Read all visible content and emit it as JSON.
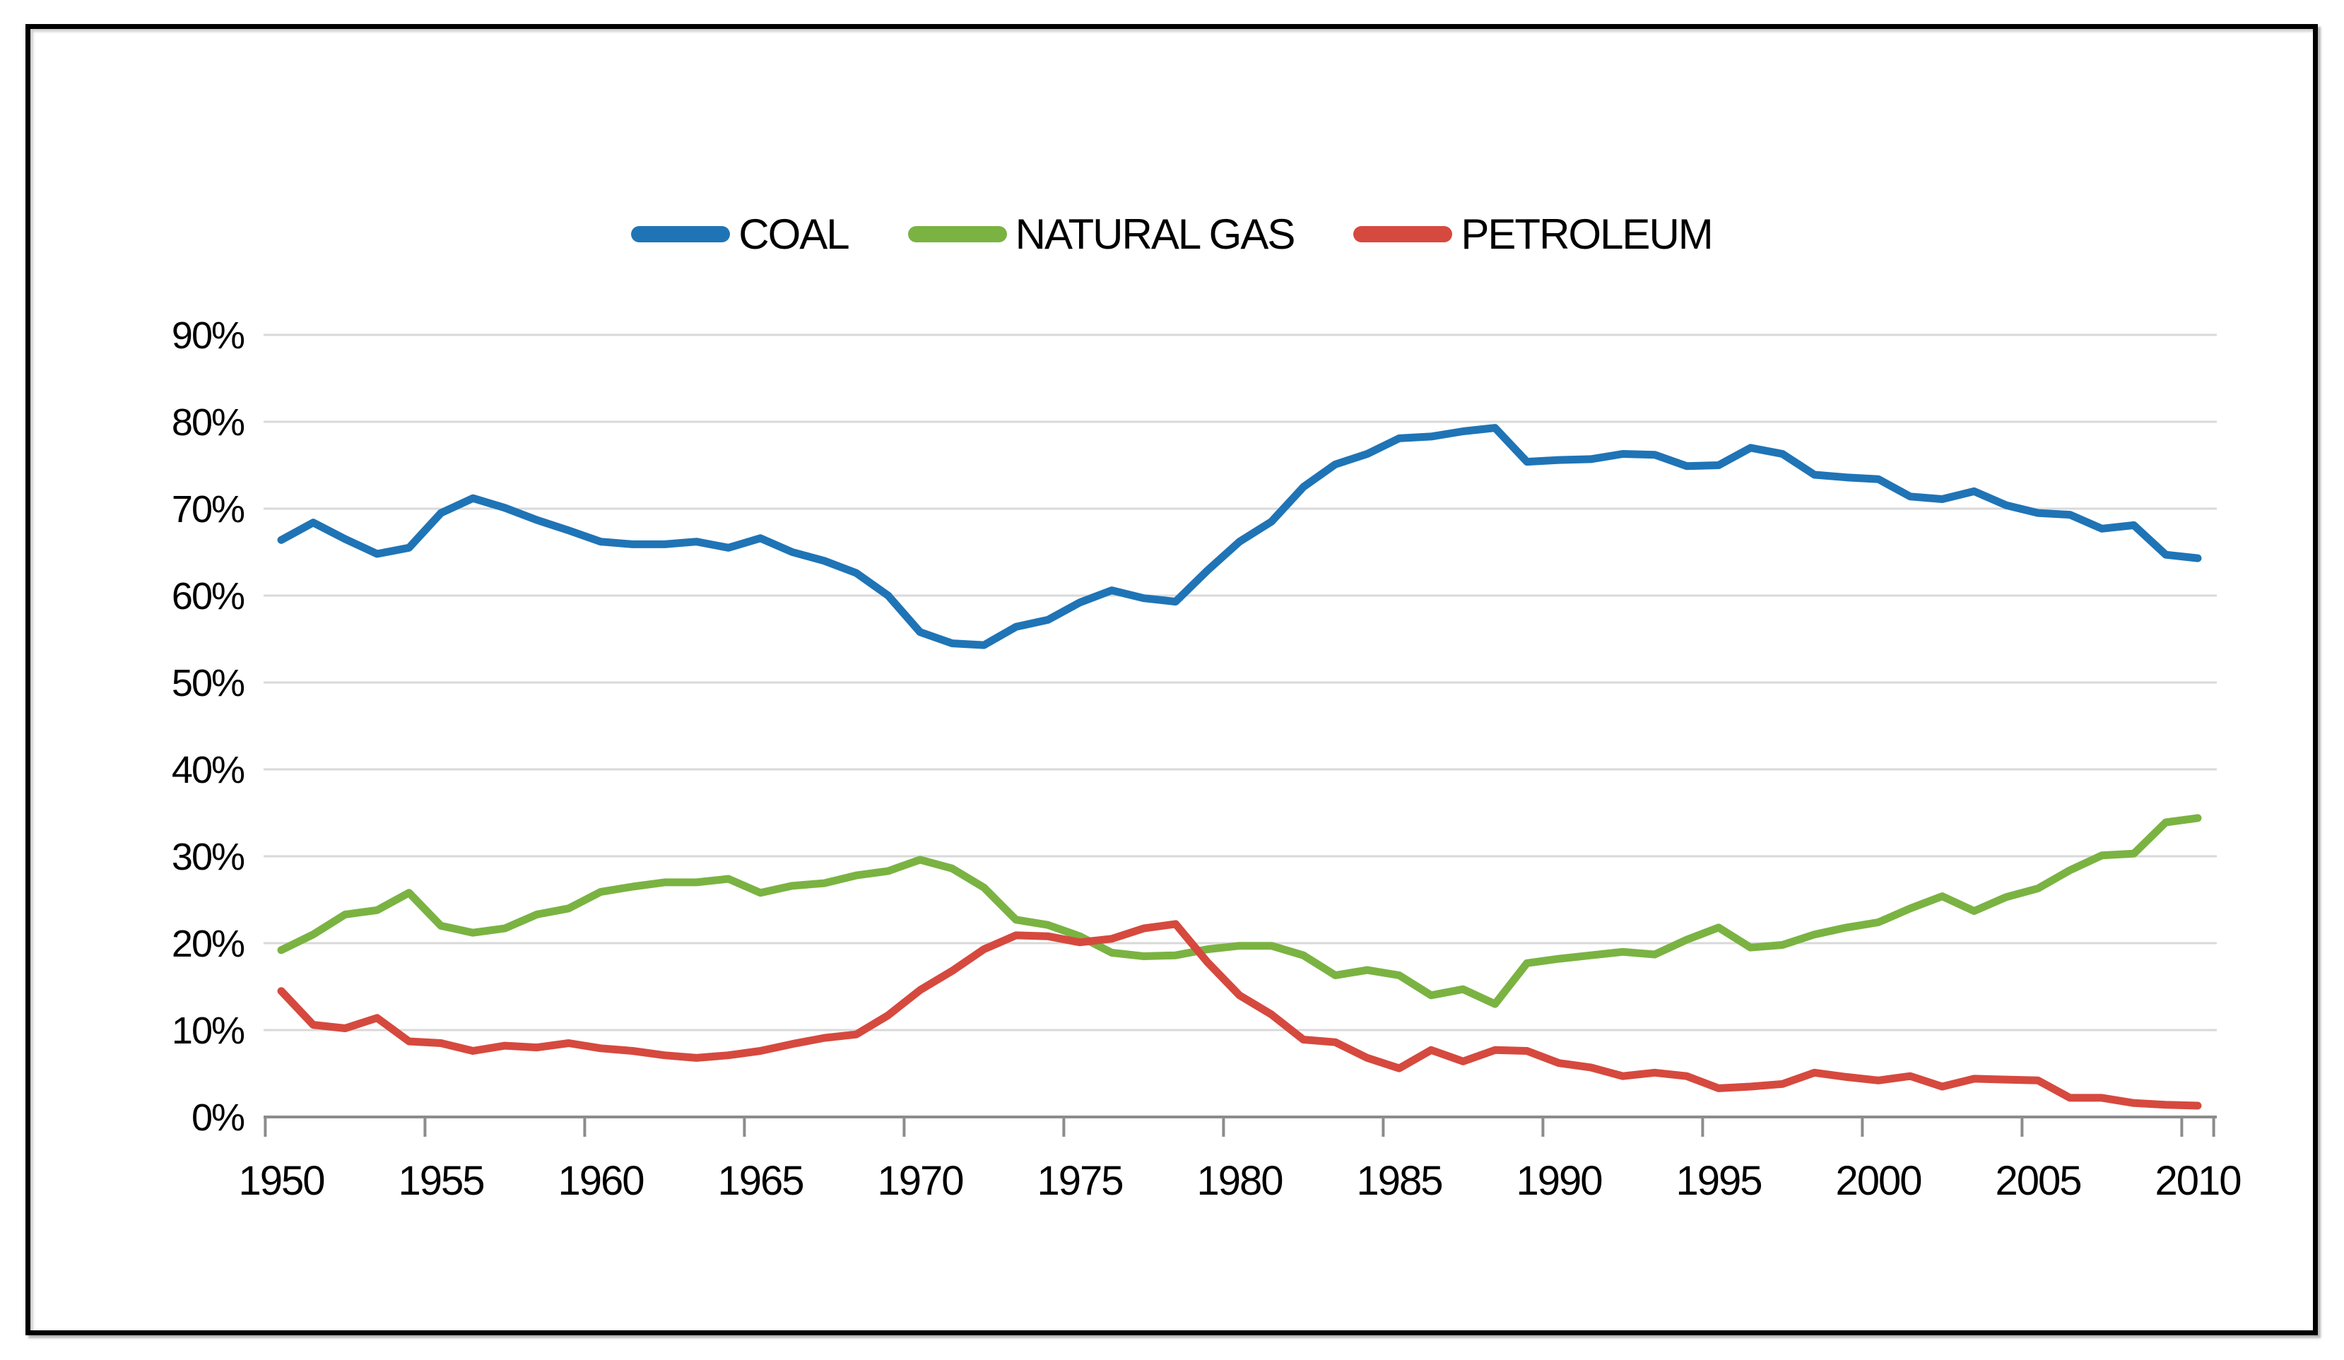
{
  "chart_data": {
    "type": "line",
    "x_range": [
      1950,
      2010
    ],
    "x_step": 1,
    "x_tick_labels": [
      "1950",
      "1955",
      "1960",
      "1965",
      "1970",
      "1975",
      "1980",
      "1985",
      "1990",
      "1995",
      "2000",
      "2005",
      "2010"
    ],
    "y_tick_labels": [
      "0%",
      "10%",
      "20%",
      "30%",
      "40%",
      "50%",
      "60%",
      "70%",
      "80%",
      "90%"
    ],
    "ylim": [
      0,
      90
    ],
    "grid": true,
    "legend_position": "top-center",
    "gridline_color": "#D9D9D9",
    "axis_color": "#8C8C8C",
    "series": [
      {
        "name": "COAL",
        "color": "#1F74B6",
        "values": [
          66.4,
          68.4,
          66.5,
          64.8,
          65.5,
          69.5,
          71.2,
          70.1,
          68.7,
          67.5,
          66.2,
          65.9,
          65.9,
          66.2,
          65.5,
          66.6,
          65.0,
          64.0,
          62.6,
          60.0,
          55.8,
          54.5,
          54.3,
          56.4,
          57.2,
          59.2,
          60.6,
          59.7,
          59.3,
          62.9,
          66.2,
          68.5,
          72.5,
          75.1,
          76.3,
          78.1,
          78.3,
          78.9,
          79.3,
          75.4,
          75.6,
          75.7,
          76.3,
          76.2,
          74.9,
          75.0,
          77.0,
          76.3,
          73.9,
          73.6,
          73.4,
          71.4,
          71.1,
          72.0,
          70.4,
          69.5,
          69.3,
          67.7,
          68.1,
          64.7,
          64.3
        ]
      },
      {
        "name": "NATURAL GAS",
        "color": "#7AB342",
        "values": [
          19.2,
          21.0,
          23.3,
          23.8,
          25.8,
          22.0,
          21.2,
          21.7,
          23.3,
          24.0,
          25.9,
          26.5,
          27.0,
          27.0,
          27.4,
          25.8,
          26.6,
          26.9,
          27.8,
          28.3,
          29.6,
          28.6,
          26.4,
          22.7,
          22.1,
          20.8,
          18.9,
          18.5,
          18.6,
          19.3,
          19.7,
          19.7,
          18.6,
          16.3,
          16.9,
          16.3,
          14.0,
          14.7,
          13.0,
          17.7,
          18.2,
          18.6,
          19.0,
          18.7,
          20.4,
          21.8,
          19.5,
          19.8,
          21.0,
          21.8,
          22.4,
          24.0,
          25.4,
          23.7,
          25.3,
          26.3,
          28.4,
          30.1,
          30.3,
          33.9,
          34.4
        ]
      },
      {
        "name": "PETROLEUM",
        "color": "#D6493E",
        "values": [
          14.5,
          10.6,
          10.2,
          11.4,
          8.7,
          8.5,
          7.6,
          8.2,
          8.0,
          8.5,
          7.9,
          7.6,
          7.1,
          6.8,
          7.1,
          7.6,
          8.4,
          9.1,
          9.5,
          11.7,
          14.6,
          16.8,
          19.3,
          20.9,
          20.8,
          20.1,
          20.5,
          21.7,
          22.2,
          17.8,
          14.0,
          11.8,
          8.9,
          8.6,
          6.8,
          5.6,
          7.7,
          6.4,
          7.7,
          7.6,
          6.2,
          5.7,
          4.7,
          5.1,
          4.7,
          3.3,
          3.5,
          3.8,
          5.1,
          4.6,
          4.2,
          4.7,
          3.5,
          4.4,
          4.3,
          4.2,
          2.2,
          2.2,
          1.6,
          1.4,
          1.3
        ]
      }
    ]
  }
}
